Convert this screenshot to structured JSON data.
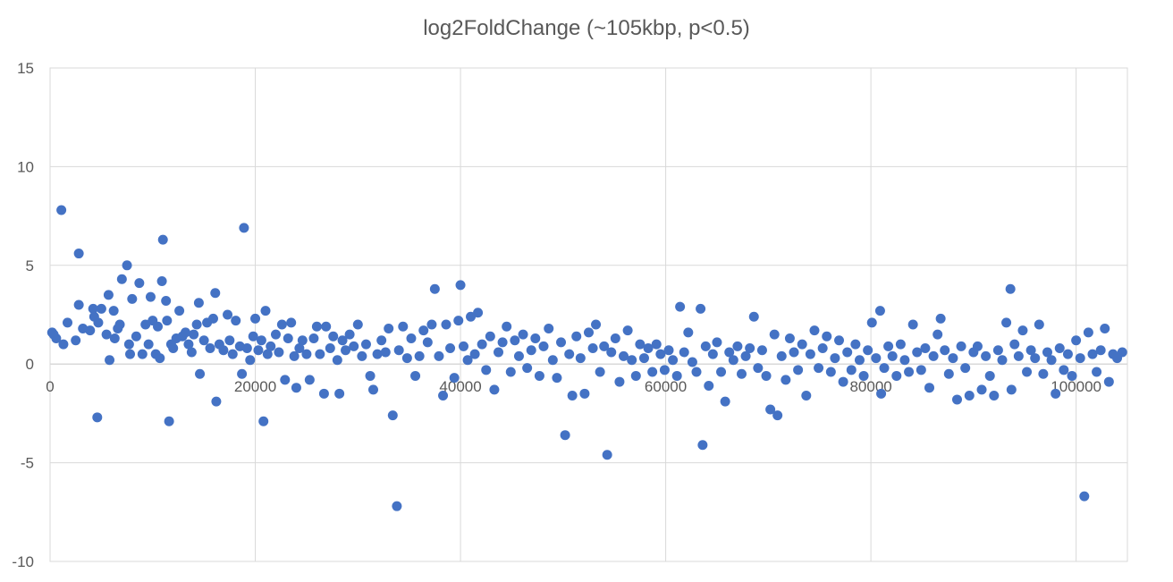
{
  "chart_data": {
    "type": "scatter",
    "title": "log2FoldChange (~105kbp, p<0.5)",
    "xlabel": "",
    "ylabel": "",
    "xlim": [
      0,
      105000
    ],
    "ylim": [
      -10,
      15
    ],
    "x_ticks": [
      0,
      20000,
      40000,
      60000,
      80000,
      100000
    ],
    "y_ticks": [
      -10,
      -5,
      0,
      5,
      10,
      15
    ],
    "x_tick_labels": [
      "0",
      "20000",
      "40000",
      "60000",
      "80000",
      "100000"
    ],
    "y_tick_labels": [
      "-10",
      "-5",
      "0",
      "5",
      "10",
      "15"
    ],
    "grid": true,
    "legend": "none",
    "marker_color": "#4472c4",
    "series": [
      {
        "points": [
          [
            200,
            1.6
          ],
          [
            350,
            1.5
          ],
          [
            600,
            1.3
          ],
          [
            1100,
            7.8
          ],
          [
            1300,
            1.0
          ],
          [
            1700,
            2.1
          ],
          [
            2500,
            1.2
          ],
          [
            2800,
            5.6
          ],
          [
            2800,
            3.0
          ],
          [
            3200,
            1.8
          ],
          [
            3900,
            1.7
          ],
          [
            4200,
            2.8
          ],
          [
            4300,
            2.4
          ],
          [
            4600,
            -2.7
          ],
          [
            4700,
            2.1
          ],
          [
            5000,
            2.8
          ],
          [
            5500,
            1.5
          ],
          [
            5700,
            3.5
          ],
          [
            5800,
            0.2
          ],
          [
            6200,
            2.7
          ],
          [
            6300,
            1.3
          ],
          [
            6600,
            1.8
          ],
          [
            6800,
            2.0
          ],
          [
            7000,
            4.3
          ],
          [
            7500,
            5.0
          ],
          [
            7700,
            1.0
          ],
          [
            7800,
            0.5
          ],
          [
            8000,
            3.3
          ],
          [
            8400,
            1.4
          ],
          [
            8700,
            4.1
          ],
          [
            9000,
            0.5
          ],
          [
            9300,
            2.0
          ],
          [
            9600,
            1.0
          ],
          [
            9800,
            3.4
          ],
          [
            10000,
            2.2
          ],
          [
            10300,
            0.5
          ],
          [
            10500,
            1.9
          ],
          [
            10700,
            0.3
          ],
          [
            10900,
            4.2
          ],
          [
            11000,
            6.3
          ],
          [
            11300,
            3.2
          ],
          [
            11400,
            2.2
          ],
          [
            11600,
            -2.9
          ],
          [
            11800,
            1.0
          ],
          [
            12000,
            0.8
          ],
          [
            12300,
            1.3
          ],
          [
            12600,
            2.7
          ],
          [
            12900,
            1.4
          ],
          [
            13200,
            1.6
          ],
          [
            13500,
            1.0
          ],
          [
            13800,
            0.6
          ],
          [
            14000,
            1.5
          ],
          [
            14300,
            2.0
          ],
          [
            14500,
            3.1
          ],
          [
            14600,
            -0.5
          ],
          [
            15000,
            1.2
          ],
          [
            15300,
            2.1
          ],
          [
            15600,
            0.8
          ],
          [
            15900,
            2.3
          ],
          [
            16100,
            3.6
          ],
          [
            16200,
            -1.9
          ],
          [
            16500,
            1.0
          ],
          [
            16900,
            0.7
          ],
          [
            17300,
            2.5
          ],
          [
            17500,
            1.2
          ],
          [
            17800,
            0.5
          ],
          [
            18100,
            2.2
          ],
          [
            18500,
            0.9
          ],
          [
            18700,
            -0.5
          ],
          [
            18900,
            6.9
          ],
          [
            19200,
            0.8
          ],
          [
            19500,
            0.2
          ],
          [
            19800,
            1.4
          ],
          [
            20000,
            2.3
          ],
          [
            20300,
            0.7
          ],
          [
            20600,
            1.2
          ],
          [
            20800,
            -2.9
          ],
          [
            21000,
            2.7
          ],
          [
            21200,
            0.5
          ],
          [
            21500,
            0.9
          ],
          [
            22000,
            1.5
          ],
          [
            22300,
            0.6
          ],
          [
            22600,
            2.0
          ],
          [
            22900,
            -0.8
          ],
          [
            23200,
            1.3
          ],
          [
            23500,
            2.1
          ],
          [
            23800,
            0.4
          ],
          [
            24000,
            -1.2
          ],
          [
            24300,
            0.8
          ],
          [
            24600,
            1.2
          ],
          [
            25000,
            0.5
          ],
          [
            25300,
            -0.8
          ],
          [
            25700,
            1.3
          ],
          [
            26000,
            1.9
          ],
          [
            26300,
            0.5
          ],
          [
            26700,
            -1.5
          ],
          [
            26900,
            1.9
          ],
          [
            27300,
            0.8
          ],
          [
            27600,
            1.4
          ],
          [
            28000,
            0.2
          ],
          [
            28200,
            -1.5
          ],
          [
            28500,
            1.2
          ],
          [
            28800,
            0.7
          ],
          [
            29200,
            1.5
          ],
          [
            29600,
            0.9
          ],
          [
            30000,
            2.0
          ],
          [
            30400,
            0.4
          ],
          [
            30800,
            1.0
          ],
          [
            31200,
            -0.6
          ],
          [
            31500,
            -1.3
          ],
          [
            31900,
            0.5
          ],
          [
            32300,
            1.2
          ],
          [
            32700,
            0.6
          ],
          [
            33000,
            1.8
          ],
          [
            33400,
            -2.6
          ],
          [
            33800,
            -7.2
          ],
          [
            34000,
            0.7
          ],
          [
            34400,
            1.9
          ],
          [
            34800,
            0.3
          ],
          [
            35200,
            1.3
          ],
          [
            35600,
            -0.6
          ],
          [
            36000,
            0.4
          ],
          [
            36400,
            1.7
          ],
          [
            36800,
            1.1
          ],
          [
            37200,
            2.0
          ],
          [
            37500,
            3.8
          ],
          [
            37900,
            0.4
          ],
          [
            38300,
            -1.6
          ],
          [
            38600,
            2.0
          ],
          [
            39000,
            0.8
          ],
          [
            39400,
            -0.7
          ],
          [
            39800,
            2.2
          ],
          [
            40000,
            4.0
          ],
          [
            40300,
            0.9
          ],
          [
            40700,
            0.2
          ],
          [
            41000,
            2.4
          ],
          [
            41400,
            0.5
          ],
          [
            41700,
            2.6
          ],
          [
            42100,
            1.0
          ],
          [
            42500,
            -0.3
          ],
          [
            42900,
            1.4
          ],
          [
            43300,
            -1.3
          ],
          [
            43700,
            0.6
          ],
          [
            44100,
            1.1
          ],
          [
            44500,
            1.9
          ],
          [
            44900,
            -0.4
          ],
          [
            45300,
            1.2
          ],
          [
            45700,
            0.4
          ],
          [
            46100,
            1.5
          ],
          [
            46500,
            -0.2
          ],
          [
            46900,
            0.7
          ],
          [
            47300,
            1.3
          ],
          [
            47700,
            -0.6
          ],
          [
            48100,
            0.9
          ],
          [
            48600,
            1.8
          ],
          [
            49000,
            0.2
          ],
          [
            49400,
            -0.7
          ],
          [
            49800,
            1.1
          ],
          [
            50200,
            -3.6
          ],
          [
            50600,
            0.5
          ],
          [
            50900,
            -1.6
          ],
          [
            51300,
            1.4
          ],
          [
            51700,
            0.3
          ],
          [
            52100,
            -1.5
          ],
          [
            52500,
            1.6
          ],
          [
            52900,
            0.8
          ],
          [
            53200,
            2.0
          ],
          [
            53600,
            -0.4
          ],
          [
            54000,
            0.9
          ],
          [
            54300,
            -4.6
          ],
          [
            54700,
            0.6
          ],
          [
            55100,
            1.3
          ],
          [
            55500,
            -0.9
          ],
          [
            55900,
            0.4
          ],
          [
            56300,
            1.7
          ],
          [
            56700,
            0.2
          ],
          [
            57100,
            -0.6
          ],
          [
            57500,
            1.0
          ],
          [
            57900,
            0.3
          ],
          [
            58300,
            0.8
          ],
          [
            58700,
            -0.4
          ],
          [
            59100,
            1.0
          ],
          [
            59500,
            0.5
          ],
          [
            59900,
            -0.3
          ],
          [
            60300,
            0.7
          ],
          [
            60700,
            0.2
          ],
          [
            61100,
            -0.6
          ],
          [
            61400,
            2.9
          ],
          [
            61800,
            0.6
          ],
          [
            62200,
            1.6
          ],
          [
            62600,
            0.1
          ],
          [
            63000,
            -0.4
          ],
          [
            63400,
            2.8
          ],
          [
            63600,
            -4.1
          ],
          [
            63900,
            0.9
          ],
          [
            64200,
            -1.1
          ],
          [
            64600,
            0.5
          ],
          [
            65000,
            1.1
          ],
          [
            65400,
            -0.4
          ],
          [
            65800,
            -1.9
          ],
          [
            66200,
            0.6
          ],
          [
            66600,
            0.2
          ],
          [
            67000,
            0.9
          ],
          [
            67400,
            -0.5
          ],
          [
            67800,
            0.4
          ],
          [
            68200,
            0.8
          ],
          [
            68600,
            2.4
          ],
          [
            69000,
            -0.2
          ],
          [
            69400,
            0.7
          ],
          [
            69800,
            -0.6
          ],
          [
            70200,
            -2.3
          ],
          [
            70600,
            1.5
          ],
          [
            70900,
            -2.6
          ],
          [
            71300,
            0.4
          ],
          [
            71700,
            -0.8
          ],
          [
            72100,
            1.3
          ],
          [
            72500,
            0.6
          ],
          [
            72900,
            -0.3
          ],
          [
            73300,
            1.0
          ],
          [
            73700,
            -1.6
          ],
          [
            74100,
            0.5
          ],
          [
            74500,
            1.7
          ],
          [
            74900,
            -0.2
          ],
          [
            75300,
            0.8
          ],
          [
            75700,
            1.4
          ],
          [
            76100,
            -0.4
          ],
          [
            76500,
            0.3
          ],
          [
            76900,
            1.2
          ],
          [
            77300,
            -0.9
          ],
          [
            77700,
            0.6
          ],
          [
            78100,
            -0.3
          ],
          [
            78500,
            1.0
          ],
          [
            78900,
            0.2
          ],
          [
            79300,
            -0.6
          ],
          [
            79700,
            0.7
          ],
          [
            80100,
            2.1
          ],
          [
            80500,
            0.3
          ],
          [
            80900,
            2.7
          ],
          [
            81000,
            -1.5
          ],
          [
            81300,
            -0.2
          ],
          [
            81700,
            0.9
          ],
          [
            82100,
            0.4
          ],
          [
            82500,
            -0.6
          ],
          [
            82900,
            1.0
          ],
          [
            83300,
            0.2
          ],
          [
            83700,
            -0.4
          ],
          [
            84100,
            2.0
          ],
          [
            84500,
            0.6
          ],
          [
            84900,
            -0.3
          ],
          [
            85300,
            0.8
          ],
          [
            85700,
            -1.2
          ],
          [
            86100,
            0.4
          ],
          [
            86500,
            1.5
          ],
          [
            86800,
            2.3
          ],
          [
            87200,
            0.7
          ],
          [
            87600,
            -0.5
          ],
          [
            88000,
            0.3
          ],
          [
            88400,
            -1.8
          ],
          [
            88800,
            0.9
          ],
          [
            89200,
            -0.2
          ],
          [
            89600,
            -1.6
          ],
          [
            90000,
            0.6
          ],
          [
            90400,
            0.9
          ],
          [
            90800,
            -1.3
          ],
          [
            91200,
            0.4
          ],
          [
            91600,
            -0.6
          ],
          [
            92000,
            -1.6
          ],
          [
            92400,
            0.7
          ],
          [
            92800,
            0.2
          ],
          [
            93200,
            2.1
          ],
          [
            93600,
            3.8
          ],
          [
            93700,
            -1.3
          ],
          [
            94000,
            1.0
          ],
          [
            94400,
            0.4
          ],
          [
            94800,
            1.7
          ],
          [
            95200,
            -0.4
          ],
          [
            95600,
            0.7
          ],
          [
            96000,
            0.3
          ],
          [
            96400,
            2.0
          ],
          [
            96800,
            -0.5
          ],
          [
            97200,
            0.6
          ],
          [
            97600,
            0.2
          ],
          [
            98000,
            -1.5
          ],
          [
            98400,
            0.8
          ],
          [
            98800,
            -0.3
          ],
          [
            99200,
            0.5
          ],
          [
            99600,
            -0.6
          ],
          [
            100000,
            1.2
          ],
          [
            100400,
            0.3
          ],
          [
            100800,
            -6.7
          ],
          [
            101200,
            1.6
          ],
          [
            101600,
            0.5
          ],
          [
            102000,
            -0.4
          ],
          [
            102400,
            0.7
          ],
          [
            102800,
            1.8
          ],
          [
            103200,
            -0.9
          ],
          [
            103600,
            0.5
          ],
          [
            104000,
            0.3
          ],
          [
            104500,
            0.6
          ]
        ]
      }
    ]
  }
}
